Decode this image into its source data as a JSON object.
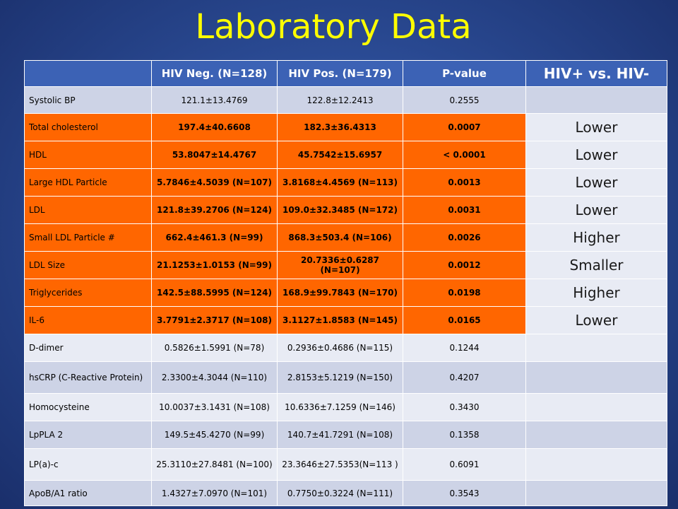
{
  "title": "Laboratory Data",
  "table": {
    "headers": [
      "",
      "HIV Neg. (N=128)",
      "HIV Pos. (N=179)",
      "P-value",
      "HIV+ vs. HIV-"
    ],
    "rows": [
      {
        "label": "Systolic BP",
        "neg": "121.1±13.4769",
        "pos": "122.8±12.2413",
        "p": "0.2555",
        "cmp": "",
        "highlight": false
      },
      {
        "label": "Total cholesterol",
        "neg": "197.4±40.6608",
        "pos": "182.3±36.4313",
        "p": "0.0007",
        "cmp": "Lower",
        "highlight": true
      },
      {
        "label": "HDL",
        "neg": "53.8047±14.4767",
        "pos": "45.7542±15.6957",
        "p": "< 0.0001",
        "cmp": "Lower",
        "highlight": true
      },
      {
        "label": "Large HDL Particle",
        "neg": "5.7846±4.5039 (N=107)",
        "pos": "3.8168±4.4569 (N=113)",
        "p": "0.0013",
        "cmp": "Lower",
        "highlight": true
      },
      {
        "label": "LDL",
        "neg": "121.8±39.2706 (N=124)",
        "pos": "109.0±32.3485 (N=172)",
        "p": "0.0031",
        "cmp": "Lower",
        "highlight": true
      },
      {
        "label": "Small LDL Particle #",
        "neg": "662.4±461.3 (N=99)",
        "pos": "868.3±503.4 (N=106)",
        "p": "0.0026",
        "cmp": "Higher",
        "highlight": true
      },
      {
        "label": "LDL Size",
        "neg": "21.1253±1.0153 (N=99)",
        "pos": "20.7336±0.6287 (N=107)",
        "p": "0.0012",
        "cmp": "Smaller",
        "highlight": true
      },
      {
        "label": "Triglycerides",
        "neg": "142.5±88.5995 (N=124)",
        "pos": "168.9±99.7843 (N=170)",
        "p": "0.0198",
        "cmp": "Higher",
        "highlight": true
      },
      {
        "label": "IL-6",
        "neg": "3.7791±2.3717 (N=108)",
        "pos": "3.1127±1.8583 (N=145)",
        "p": "0.0165",
        "cmp": "Lower",
        "highlight": true
      },
      {
        "label": "D-dimer",
        "neg": "0.5826±1.5991 (N=78)",
        "pos": "0.2936±0.4686 (N=115)",
        "p": "0.1244",
        "cmp": "",
        "highlight": false
      },
      {
        "label": "hsCRP (C-Reactive Protein)",
        "neg": "2.3300±4.3044 (N=110)",
        "pos": "2.8153±5.1219 (N=150)",
        "p": "0.4207",
        "cmp": "",
        "highlight": false
      },
      {
        "label": "Homocysteine",
        "neg": "10.0037±3.1431 (N=108)",
        "pos": "10.6336±7.1259 (N=146)",
        "p": "0.3430",
        "cmp": "",
        "highlight": false
      },
      {
        "label": "LpPLA 2",
        "neg": "149.5±45.4270 (N=99)",
        "pos": "140.7±41.7291 (N=108)",
        "p": "0.1358",
        "cmp": "",
        "highlight": false
      },
      {
        "label": "LP(a)-c",
        "neg": "25.3110±27.8481 (N=100)",
        "pos": "23.3646±27.5353(N=113 )",
        "p": "0.6091",
        "cmp": "",
        "highlight": false
      },
      {
        "label": "ApoB/A1 ratio",
        "neg": "1.4327±7.0970 (N=101)",
        "pos": "0.7750±0.3224 (N=111)",
        "p": "0.3543",
        "cmp": "",
        "highlight": false
      }
    ]
  }
}
